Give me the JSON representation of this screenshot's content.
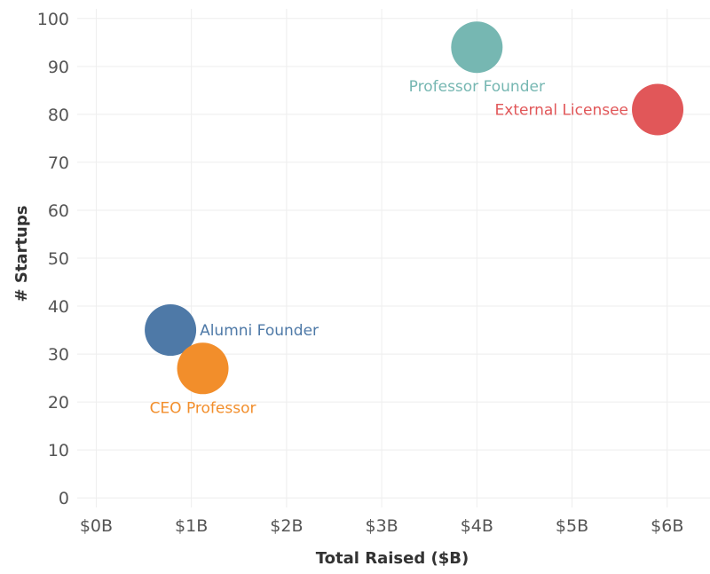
{
  "chart_data": {
    "type": "scatter",
    "title": "",
    "xlabel": "Total Raised ($B)",
    "ylabel": "# Startups",
    "xlim": [
      -0.2,
      6.45
    ],
    "ylim": [
      -2,
      102
    ],
    "x_ticks": [
      0,
      1,
      2,
      3,
      4,
      5,
      6
    ],
    "x_tick_labels": [
      "$0B",
      "$1B",
      "$2B",
      "$3B",
      "$4B",
      "$5B",
      "$6B"
    ],
    "y_ticks": [
      0,
      10,
      20,
      30,
      40,
      50,
      60,
      70,
      80,
      90,
      100
    ],
    "y_tick_labels": [
      "0",
      "10",
      "20",
      "30",
      "40",
      "50",
      "60",
      "70",
      "80",
      "90",
      "100"
    ],
    "grid": true,
    "legend": "none",
    "points": [
      {
        "label": "Professor Founder",
        "x": 4.0,
        "y": 94,
        "color": "#76b7b2",
        "label_placement": "below"
      },
      {
        "label": "External Licensee",
        "x": 5.9,
        "y": 81,
        "color": "#e15759",
        "label_placement": "left"
      },
      {
        "label": "Alumni Founder",
        "x": 0.78,
        "y": 35,
        "color": "#4e79a7",
        "label_placement": "right"
      },
      {
        "label": "CEO Professor",
        "x": 1.12,
        "y": 27,
        "color": "#f28e2b",
        "label_placement": "below"
      }
    ]
  }
}
